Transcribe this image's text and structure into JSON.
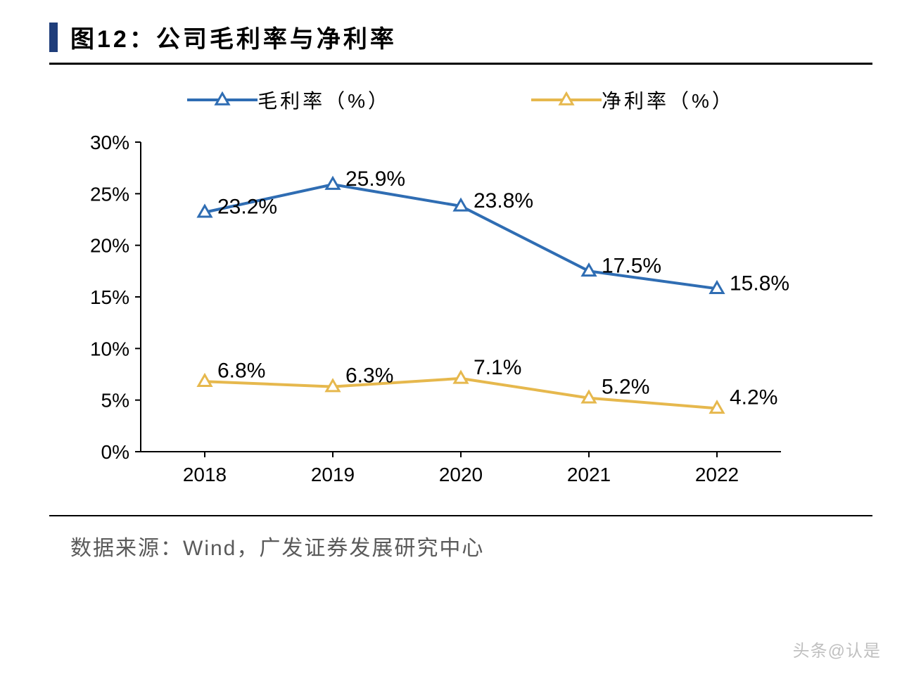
{
  "title": "图12：公司毛利率与净利率",
  "title_bar_color": "#1f3d7a",
  "source": "数据来源：Wind，广发证券发展研究中心",
  "watermark": "头条@认是",
  "chart": {
    "type": "line",
    "categories": [
      "2018",
      "2019",
      "2020",
      "2021",
      "2022"
    ],
    "ylim": [
      0,
      30
    ],
    "ytick_step": 5,
    "ytick_suffix": "%",
    "axis_color": "#000000",
    "axis_fontsize": 28,
    "label_fontsize": 30,
    "background_color": "#ffffff",
    "line_width": 4,
    "marker": "triangle",
    "marker_size": 18,
    "series": [
      {
        "name": "毛利率（%）",
        "color": "#2f6db3",
        "values": [
          23.2,
          25.9,
          23.8,
          17.5,
          15.8
        ],
        "labels": [
          "23.2%",
          "25.9%",
          "23.8%",
          "17.5%",
          "15.8%"
        ],
        "label_positions": [
          "right",
          "right",
          "right",
          "right",
          "right"
        ]
      },
      {
        "name": "净利率（%）",
        "color": "#e6b84d",
        "values": [
          6.8,
          6.3,
          7.1,
          5.2,
          4.2
        ],
        "labels": [
          "6.8%",
          "6.3%",
          "7.1%",
          "5.2%",
          "4.2%"
        ],
        "label_positions": [
          "right",
          "right",
          "right",
          "right",
          "right"
        ]
      }
    ]
  }
}
